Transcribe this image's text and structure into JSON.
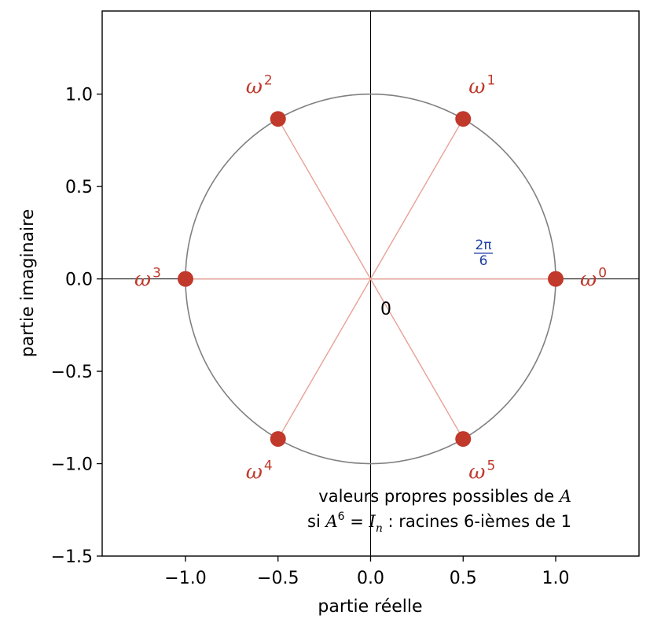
{
  "chart_data": {
    "type": "scatter",
    "xlabel": "partie réelle",
    "ylabel": "partie imaginaire",
    "xlim": [
      -1.45,
      1.45
    ],
    "ylim": [
      -1.5,
      1.45
    ],
    "x_ticks": [
      -1.0,
      -0.5,
      0.0,
      0.5,
      1.0
    ],
    "x_tick_labels": [
      "−1.0",
      "−0.5",
      "0.0",
      "0.5",
      "1.0"
    ],
    "y_ticks": [
      -1.5,
      -1.0,
      -0.5,
      0.0,
      0.5,
      1.0
    ],
    "y_tick_labels": [
      "−1.5",
      "−1.0",
      "−0.5",
      "0.0",
      "0.5",
      "1.0"
    ],
    "grid": false,
    "unit_circle": true,
    "points": [
      {
        "x": 1.0,
        "y": 0.0,
        "label": "ω",
        "exponent": "0"
      },
      {
        "x": 0.5,
        "y": 0.866,
        "label": "ω",
        "exponent": "1"
      },
      {
        "x": -0.5,
        "y": 0.866,
        "label": "ω",
        "exponent": "2"
      },
      {
        "x": -1.0,
        "y": 0.0,
        "label": "ω",
        "exponent": "3"
      },
      {
        "x": -0.5,
        "y": -0.866,
        "label": "ω",
        "exponent": "4"
      },
      {
        "x": 0.5,
        "y": -0.866,
        "label": "ω",
        "exponent": "5"
      }
    ],
    "origin_label": "0",
    "angle_label": {
      "numerator": "2π",
      "denominator": "6"
    },
    "annotation_line1_text": "valeurs propres possibles de ",
    "annotation_line1_var": "A",
    "annotation_line2_pre": "si ",
    "annotation_line2_var": "A",
    "annotation_line2_exp": "6",
    "annotation_line2_eq": " = ",
    "annotation_line2_id": "I",
    "annotation_line2_sub": "n",
    "annotation_line2_rest": " : racines 6-ièmes de 1",
    "colors": {
      "points": "#c0392b",
      "spokes": "#e8a196",
      "circle": "#808080",
      "angle_label": "#1f3fa8",
      "axes": "#000000"
    }
  }
}
